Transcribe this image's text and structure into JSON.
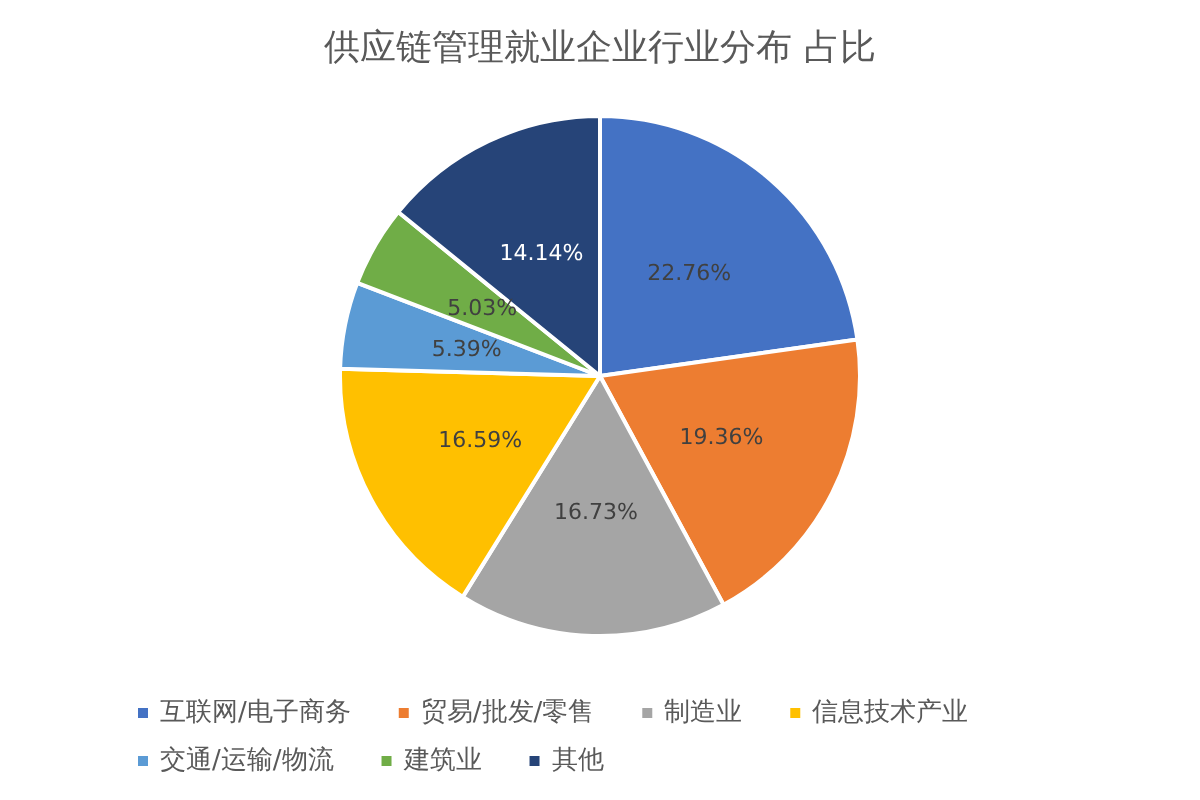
{
  "chart_data": {
    "type": "pie",
    "title": "供应链管理就业企业行业分布 占比",
    "categories": [
      "互联网/电子商务",
      "贸易/批发/零售",
      "制造业",
      "信息技术产业",
      "交通/运输/物流",
      "建筑业",
      "其他"
    ],
    "values": [
      22.76,
      19.36,
      16.73,
      16.59,
      5.39,
      5.03,
      14.14
    ],
    "value_labels": [
      "22.76%",
      "19.36%",
      "16.73%",
      "16.59%",
      "5.39%",
      "5.03%",
      "14.14%"
    ],
    "colors": [
      "#4472c4",
      "#ed7d31",
      "#a5a5a5",
      "#ffc000",
      "#5b9bd5",
      "#70ad47",
      "#264478"
    ],
    "legend": "bottom"
  }
}
